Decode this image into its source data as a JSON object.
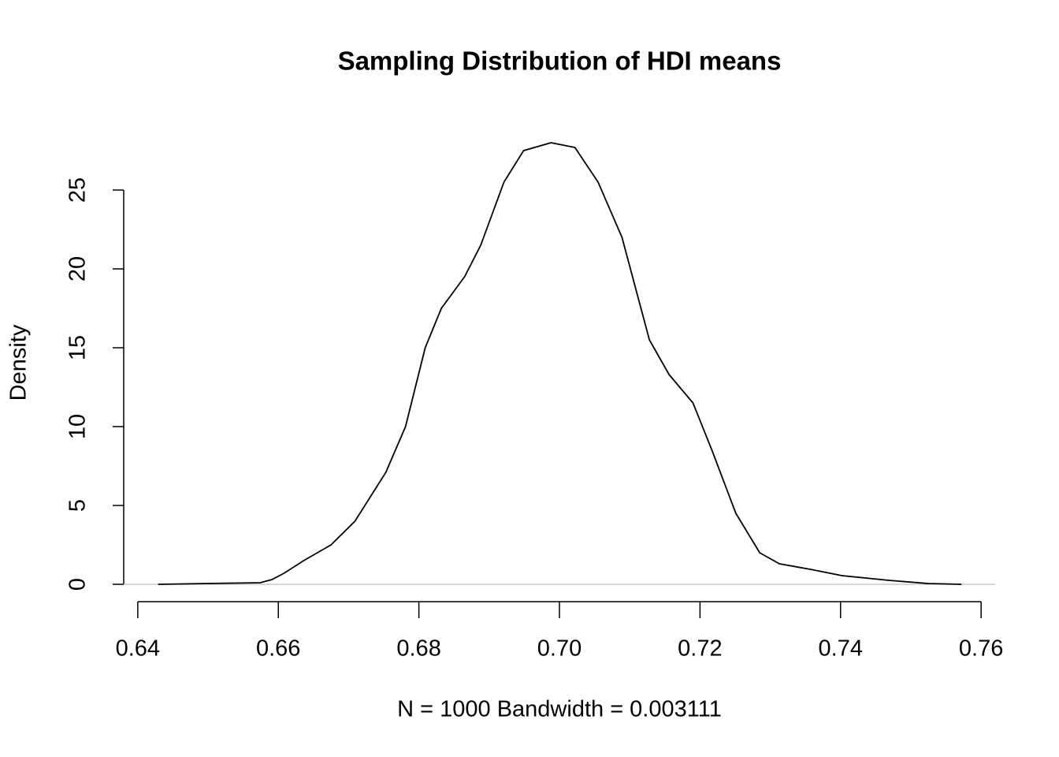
{
  "chart_data": {
    "type": "line",
    "title": "Sampling Distribution of HDI means",
    "x_label": "N = 1000   Bandwidth = 0.003111",
    "y_label": "Density",
    "x": [
      0.6429,
      0.6496,
      0.6574,
      0.6591,
      0.6608,
      0.6636,
      0.6675,
      0.6709,
      0.6753,
      0.6781,
      0.6809,
      0.6832,
      0.6865,
      0.6888,
      0.6921,
      0.6949,
      0.6988,
      0.7022,
      0.7055,
      0.7089,
      0.7128,
      0.7156,
      0.719,
      0.7217,
      0.7251,
      0.7285,
      0.7313,
      0.7357,
      0.7402,
      0.7469,
      0.7525,
      0.7572
    ],
    "series": [
      {
        "color": "#000000",
        "values": [
          0,
          0.05,
          0.1,
          0.3,
          0.7,
          1.5,
          2.5,
          4.0,
          7.1,
          10.0,
          15.0,
          17.5,
          19.5,
          21.5,
          25.5,
          27.5,
          28.0,
          27.7,
          25.5,
          22.0,
          15.5,
          13.3,
          11.5,
          8.5,
          4.5,
          2.0,
          1.3,
          0.95,
          0.55,
          0.25,
          0.05,
          0
        ]
      }
    ],
    "xlim": [
      0.638,
      0.762
    ],
    "ylim": [
      -1.1,
      29.1
    ],
    "xticks": [
      0.64,
      0.66,
      0.68,
      {
        "value": 0.7,
        "label": "0.70"
      },
      0.72,
      0.74,
      0.76
    ],
    "yticks": [
      0,
      5,
      10,
      15,
      20,
      25
    ],
    "zero_line": true,
    "zero_line_color": "#bebebe",
    "grid": false
  }
}
